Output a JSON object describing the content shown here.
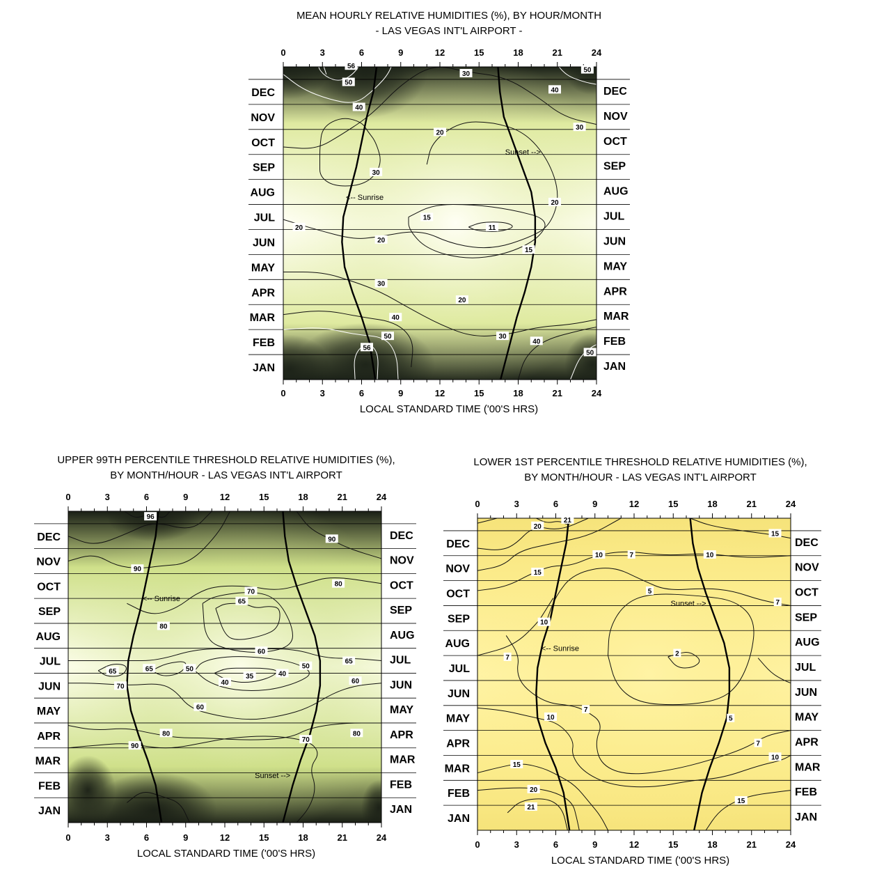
{
  "charts": [
    {
      "id": "mean",
      "title_line1": "MEAN HOURLY RELATIVE HUMIDITIES (%), BY HOUR/MONTH",
      "title_line2": "- LAS VEGAS INT'L AIRPORT -",
      "xlabel": "LOCAL STANDARD TIME ('00'S HRS)",
      "sunrise_label": "<-- Sunrise",
      "sunset_label": "Sunset -->",
      "colors": {
        "high": "#1c2218",
        "mid": "#dfeaa0",
        "low": "#fffff4"
      }
    },
    {
      "id": "upper",
      "title_line1": "UPPER 99TH PERCENTILE THRESHOLD RELATIVE HUMIDITIES (%),",
      "title_line2": "BY MONTH/HOUR - LAS VEGAS INT'L AIRPORT",
      "xlabel": "LOCAL STANDARD TIME ('00'S HRS)",
      "sunrise_label": "<-- Sunrise",
      "sunset_label": "Sunset -->",
      "colors": {
        "high": "#1a1f16",
        "mid": "#cfe08a",
        "low": "#fbfde8"
      }
    },
    {
      "id": "lower",
      "title_line1": "LOWER 1ST PERCENTILE THRESHOLD RELATIVE HUMIDITIES (%),",
      "title_line2": "BY MONTH/HOUR - LAS VEGAS INT'L AIRPORT",
      "xlabel": "LOCAL STANDARD TIME ('00'S HRS)",
      "sunrise_label": "<-- Sunrise",
      "sunset_label": "Sunset -->",
      "colors": {
        "high": "#f6e37a",
        "mid": "#fbeb8a",
        "low": "#fff3a4"
      }
    }
  ],
  "chart_data": [
    {
      "type": "heatmap",
      "title": "MEAN HOURLY RELATIVE HUMIDITIES (%), BY HOUR/MONTH - LAS VEGAS INT'L AIRPORT -",
      "xlabel": "LOCAL STANDARD TIME ('00'S HRS)",
      "x_ticks": [
        0,
        3,
        6,
        9,
        12,
        15,
        18,
        21,
        24
      ],
      "xlim": [
        0,
        24
      ],
      "months": [
        "JAN",
        "FEB",
        "MAR",
        "APR",
        "MAY",
        "JUN",
        "JUL",
        "AUG",
        "SEP",
        "OCT",
        "NOV",
        "DEC"
      ],
      "contour_levels": [
        11,
        15,
        20,
        30,
        40,
        50,
        56
      ],
      "contour_labels": [
        {
          "hour": 5.2,
          "month": 12.55,
          "value": "56"
        },
        {
          "hour": 5.0,
          "month": 11.9,
          "value": "50"
        },
        {
          "hour": 5.8,
          "month": 10.9,
          "value": "40"
        },
        {
          "hour": 14.0,
          "month": 12.25,
          "value": "30"
        },
        {
          "hour": 23.3,
          "month": 12.4,
          "value": "50"
        },
        {
          "hour": 20.8,
          "month": 11.6,
          "value": "40"
        },
        {
          "hour": 22.7,
          "month": 10.1,
          "value": "30"
        },
        {
          "hour": 12.0,
          "month": 9.9,
          "value": "20"
        },
        {
          "hour": 7.1,
          "month": 8.3,
          "value": "30"
        },
        {
          "hour": 20.8,
          "month": 7.1,
          "value": "20"
        },
        {
          "hour": 11.0,
          "month": 6.5,
          "value": "15"
        },
        {
          "hour": 16.0,
          "month": 6.1,
          "value": "11"
        },
        {
          "hour": 1.2,
          "month": 6.1,
          "value": "20"
        },
        {
          "hour": 7.5,
          "month": 5.6,
          "value": "20"
        },
        {
          "hour": 18.8,
          "month": 5.2,
          "value": "15"
        },
        {
          "hour": 7.5,
          "month": 3.85,
          "value": "30"
        },
        {
          "hour": 13.7,
          "month": 3.2,
          "value": "20"
        },
        {
          "hour": 8.6,
          "month": 2.5,
          "value": "40"
        },
        {
          "hour": 8.0,
          "month": 1.75,
          "value": "50"
        },
        {
          "hour": 16.8,
          "month": 1.75,
          "value": "30"
        },
        {
          "hour": 19.4,
          "month": 1.55,
          "value": "40"
        },
        {
          "hour": 6.4,
          "month": 1.3,
          "value": "56"
        },
        {
          "hour": 23.5,
          "month": 1.1,
          "value": "50"
        }
      ],
      "sunrise_hours": [
        6.9,
        6.6,
        6.0,
        5.3,
        4.7,
        4.5,
        4.6,
        5.1,
        5.6,
        6.0,
        6.4,
        6.9
      ],
      "sunset_hours": [
        16.9,
        17.4,
        17.9,
        18.5,
        19.0,
        19.3,
        19.3,
        19.0,
        18.3,
        17.6,
        16.9,
        16.6
      ]
    },
    {
      "type": "heatmap",
      "title": "UPPER 99TH PERCENTILE THRESHOLD RELATIVE HUMIDITIES (%), BY MONTH/HOUR - LAS VEGAS INT'L AIRPORT",
      "xlabel": "LOCAL STANDARD TIME ('00'S HRS)",
      "x_ticks": [
        0,
        3,
        6,
        9,
        12,
        15,
        18,
        21,
        24
      ],
      "xlim": [
        0,
        24
      ],
      "months": [
        "JAN",
        "FEB",
        "MAR",
        "APR",
        "MAY",
        "JUN",
        "JUL",
        "AUG",
        "SEP",
        "OCT",
        "NOV",
        "DEC"
      ],
      "contour_levels": [
        35,
        40,
        50,
        60,
        65,
        70,
        80,
        90,
        96
      ],
      "contour_labels": [
        {
          "hour": 6.3,
          "month": 12.3,
          "value": "96"
        },
        {
          "hour": 20.2,
          "month": 11.4,
          "value": "90"
        },
        {
          "hour": 5.3,
          "month": 10.2,
          "value": "90"
        },
        {
          "hour": 20.7,
          "month": 9.6,
          "value": "80"
        },
        {
          "hour": 14.0,
          "month": 9.3,
          "value": "70"
        },
        {
          "hour": 13.3,
          "month": 8.9,
          "value": "65"
        },
        {
          "hour": 7.3,
          "month": 7.9,
          "value": "80"
        },
        {
          "hour": 14.8,
          "month": 6.9,
          "value": "60"
        },
        {
          "hour": 21.5,
          "month": 6.5,
          "value": "65"
        },
        {
          "hour": 3.4,
          "month": 6.1,
          "value": "65"
        },
        {
          "hour": 6.2,
          "month": 6.2,
          "value": "65"
        },
        {
          "hour": 9.3,
          "month": 6.2,
          "value": "50"
        },
        {
          "hour": 18.2,
          "month": 6.3,
          "value": "50"
        },
        {
          "hour": 13.9,
          "month": 5.9,
          "value": "35"
        },
        {
          "hour": 16.4,
          "month": 6.0,
          "value": "40"
        },
        {
          "hour": 12.0,
          "month": 5.65,
          "value": "40"
        },
        {
          "hour": 22.0,
          "month": 5.7,
          "value": "60"
        },
        {
          "hour": 4.0,
          "month": 5.5,
          "value": "70"
        },
        {
          "hour": 10.1,
          "month": 4.65,
          "value": "60"
        },
        {
          "hour": 7.5,
          "month": 3.6,
          "value": "80"
        },
        {
          "hour": 22.1,
          "month": 3.6,
          "value": "80"
        },
        {
          "hour": 18.2,
          "month": 3.35,
          "value": "70"
        },
        {
          "hour": 5.1,
          "month": 3.1,
          "value": "90"
        }
      ],
      "sunrise_hours": [
        7.0,
        6.7,
        6.1,
        5.4,
        4.8,
        4.5,
        4.6,
        5.0,
        5.5,
        5.9,
        6.3,
        6.7
      ],
      "sunset_hours": [
        16.7,
        17.2,
        17.8,
        18.5,
        19.0,
        19.3,
        19.3,
        18.9,
        18.2,
        17.5,
        16.9,
        16.6
      ]
    },
    {
      "type": "heatmap",
      "title": "LOWER 1ST PERCENTILE THRESHOLD RELATIVE HUMIDITIES (%), BY MONTH/HOUR - LAS VEGAS INT'L AIRPORT",
      "xlabel": "LOCAL STANDARD TIME ('00'S HRS)",
      "x_ticks": [
        0,
        3,
        6,
        9,
        12,
        15,
        18,
        21,
        24
      ],
      "xlim": [
        0,
        24
      ],
      "months": [
        "JAN",
        "FEB",
        "MAR",
        "APR",
        "MAY",
        "JUN",
        "JUL",
        "AUG",
        "SEP",
        "OCT",
        "NOV",
        "DEC"
      ],
      "contour_levels": [
        2,
        5,
        7,
        10,
        15,
        20,
        21
      ],
      "contour_labels": [
        {
          "hour": 6.9,
          "month": 12.45,
          "value": "21"
        },
        {
          "hour": 4.6,
          "month": 12.2,
          "value": "20"
        },
        {
          "hour": 22.8,
          "month": 11.9,
          "value": "15"
        },
        {
          "hour": 9.3,
          "month": 11.05,
          "value": "10"
        },
        {
          "hour": 11.8,
          "month": 11.05,
          "value": "7"
        },
        {
          "hour": 17.8,
          "month": 11.05,
          "value": "10"
        },
        {
          "hour": 4.6,
          "month": 10.35,
          "value": "15"
        },
        {
          "hour": 13.2,
          "month": 9.6,
          "value": "5"
        },
        {
          "hour": 23.0,
          "month": 9.15,
          "value": "7"
        },
        {
          "hour": 5.1,
          "month": 8.35,
          "value": "10"
        },
        {
          "hour": 15.3,
          "month": 7.1,
          "value": "2"
        },
        {
          "hour": 2.3,
          "month": 6.95,
          "value": "7"
        },
        {
          "hour": 8.3,
          "month": 4.85,
          "value": "7"
        },
        {
          "hour": 5.6,
          "month": 4.55,
          "value": "10"
        },
        {
          "hour": 19.4,
          "month": 4.5,
          "value": "5"
        },
        {
          "hour": 21.5,
          "month": 3.5,
          "value": "7"
        },
        {
          "hour": 22.8,
          "month": 2.95,
          "value": "10"
        },
        {
          "hour": 3.0,
          "month": 2.65,
          "value": "15"
        },
        {
          "hour": 4.3,
          "month": 1.65,
          "value": "20"
        },
        {
          "hour": 20.2,
          "month": 1.2,
          "value": "15"
        },
        {
          "hour": 4.1,
          "month": 0.95,
          "value": "21"
        }
      ],
      "sunrise_hours": [
        6.9,
        6.6,
        6.0,
        5.2,
        4.6,
        4.5,
        4.6,
        5.0,
        5.6,
        6.0,
        6.4,
        6.8
      ],
      "sunset_hours": [
        16.8,
        17.2,
        17.8,
        18.5,
        19.1,
        19.3,
        19.3,
        18.9,
        18.2,
        17.5,
        16.9,
        16.5
      ]
    }
  ]
}
